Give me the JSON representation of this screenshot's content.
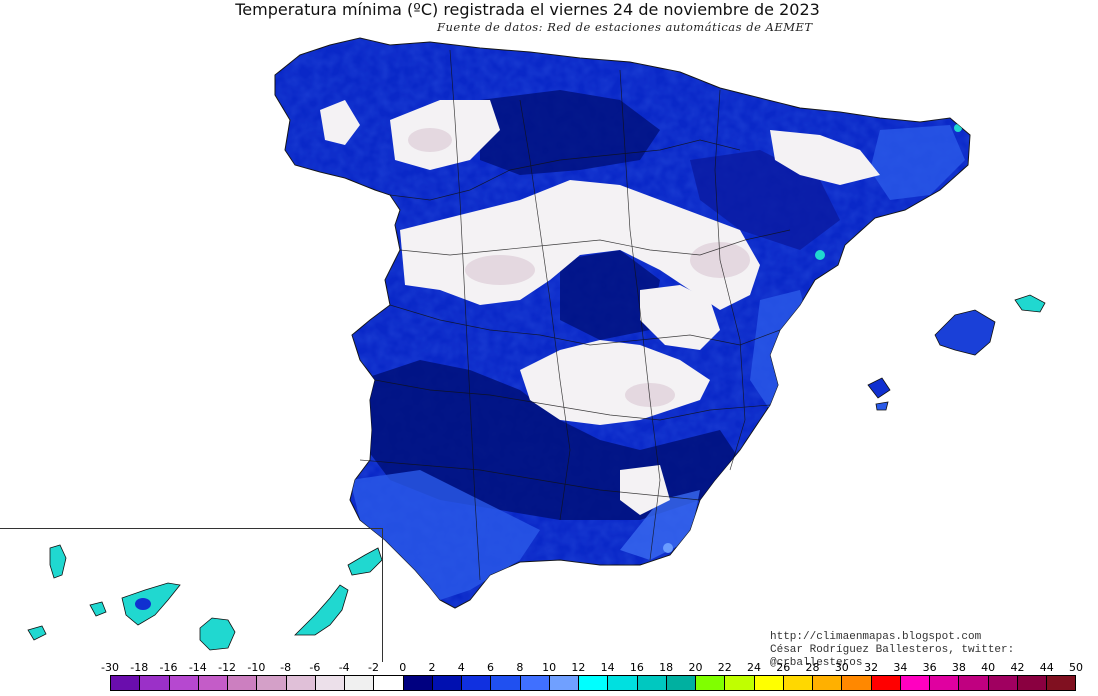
{
  "title": "Temperatura mínima (ºC) registrada el viernes 24 de noviembre de 2023",
  "subtitle": "Fuente de datos: Red de estaciones automáticas de AEMET",
  "credits": {
    "blog": "http://climaenmapas.blogspot.com",
    "author": "César Rodríguez Ballesteros, twitter: @crballesteros"
  },
  "legend": {
    "labels": [
      "-30",
      "-18",
      "-16",
      "-14",
      "-12",
      "-10",
      "-8",
      "-6",
      "-4",
      "-2",
      "0",
      "2",
      "4",
      "6",
      "8",
      "10",
      "12",
      "14",
      "16",
      "18",
      "20",
      "22",
      "24",
      "26",
      "28",
      "30",
      "32",
      "34",
      "36",
      "38",
      "40",
      "42",
      "44",
      "50"
    ],
    "colors": [
      "#6a0dad",
      "#9b30c8",
      "#b648d0",
      "#c45cc8",
      "#cc7fc0",
      "#d4a0c8",
      "#e0c0d8",
      "#ece0ea",
      "#f0f0f0",
      "#ffffff",
      "#000080",
      "#0010b0",
      "#1030e0",
      "#2050f0",
      "#4070ff",
      "#70a0ff",
      "#00ffff",
      "#00e0e0",
      "#00c8c0",
      "#00b0a0",
      "#80ff00",
      "#c0ff00",
      "#ffff00",
      "#ffd800",
      "#ffb000",
      "#ff8800",
      "#ff0000",
      "#ff00c0",
      "#e000a0",
      "#c00080",
      "#a00060",
      "#8a0040",
      "#801020"
    ]
  },
  "map_colors": {
    "cold": "#f4f2f4",
    "cold_tint": "#e4d8e0",
    "deep_blue": "#00107a",
    "mid_blue": "#0a28c8",
    "light_blue": "#2a5ae8",
    "cyan": "#20d8d0",
    "border": "#111111"
  }
}
